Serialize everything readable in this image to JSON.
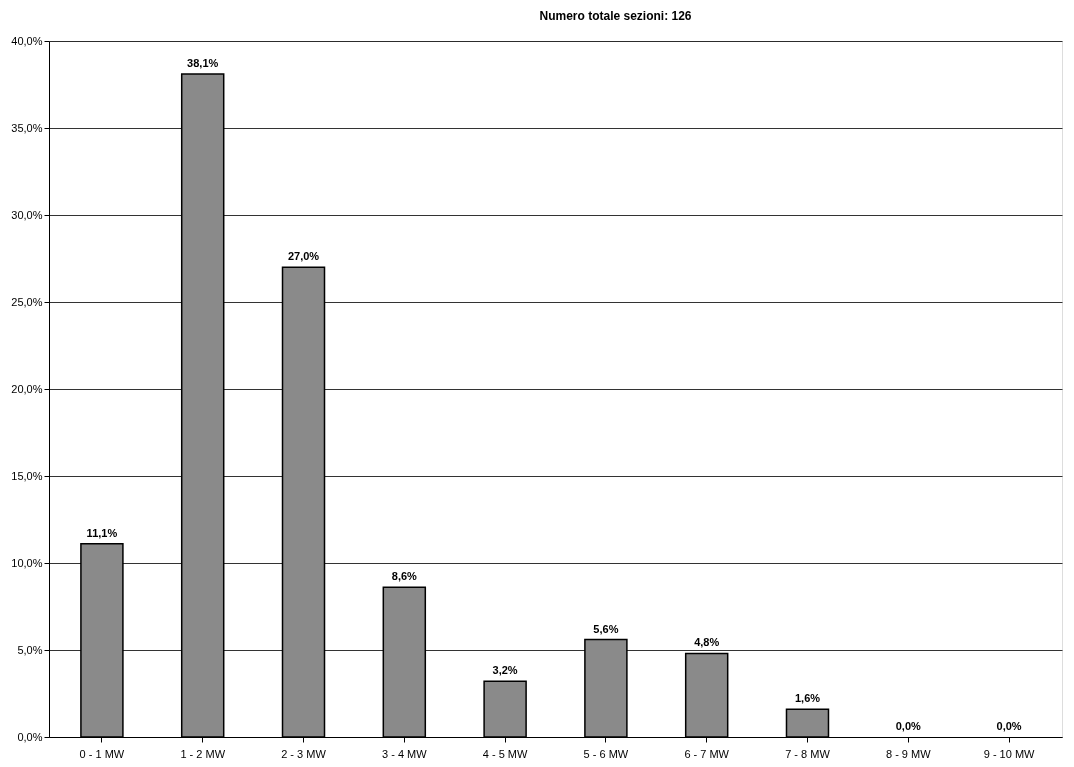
{
  "chart_data": {
    "type": "bar",
    "title": "Numero totale sezioni: 126",
    "categories": [
      "0 - 1 MW",
      "1 - 2 MW",
      "2 - 3 MW",
      "3 - 4 MW",
      "4 - 5 MW",
      "5 - 6 MW",
      "6 - 7 MW",
      "7 - 8 MW",
      "8 - 9 MW",
      "9 - 10 MW"
    ],
    "values": [
      11.1,
      38.1,
      27.0,
      8.6,
      3.2,
      5.6,
      4.8,
      1.6,
      0.0,
      0.0
    ],
    "value_labels": [
      "11,1%",
      "38,1%",
      "27,0%",
      "8,6%",
      "3,2%",
      "5,6%",
      "4,8%",
      "1,6%",
      "0,0%",
      "0,0%"
    ],
    "color": "#8a8a8a",
    "ylim": [
      0,
      40
    ],
    "yticks": [
      {
        "value": 0,
        "label": "0,0%"
      },
      {
        "value": 5,
        "label": "5,0%"
      },
      {
        "value": 10,
        "label": "10,0%"
      },
      {
        "value": 15,
        "label": "15,0%"
      },
      {
        "value": 20,
        "label": "20,0%"
      },
      {
        "value": 25,
        "label": "25,0%"
      },
      {
        "value": 30,
        "label": "30,0%"
      },
      {
        "value": 35,
        "label": "35,0%"
      },
      {
        "value": 40,
        "label": "40,0%"
      }
    ],
    "grid": "y"
  }
}
